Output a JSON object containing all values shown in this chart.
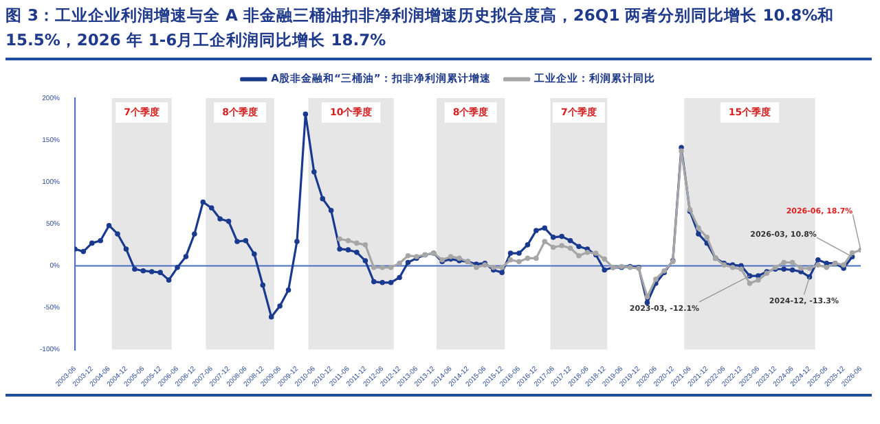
{
  "chart_data": {
    "type": "line",
    "title": "图 3：工业企业利润增速与全 A 非金融三桶油扣非净利润增速历史拟合度高，26Q1 两者分别同比增长 10.8%和 15.5%，2026 年 1-6月工企利润同比增长 18.7%",
    "x": [
      "2003-06",
      "2003-09",
      "2003-12",
      "2004-03",
      "2004-06",
      "2004-09",
      "2004-12",
      "2005-03",
      "2005-06",
      "2005-09",
      "2005-12",
      "2006-03",
      "2006-06",
      "2006-09",
      "2006-12",
      "2007-03",
      "2007-06",
      "2007-09",
      "2007-12",
      "2008-03",
      "2008-06",
      "2008-09",
      "2008-12",
      "2009-03",
      "2009-06",
      "2009-09",
      "2009-12",
      "2010-03",
      "2010-06",
      "2010-09",
      "2010-12",
      "2011-03",
      "2011-06",
      "2011-09",
      "2011-12",
      "2012-03",
      "2012-06",
      "2012-09",
      "2012-12",
      "2013-03",
      "2013-06",
      "2013-09",
      "2013-12",
      "2014-03",
      "2014-06",
      "2014-09",
      "2014-12",
      "2015-03",
      "2015-06",
      "2015-09",
      "2015-12",
      "2016-03",
      "2016-06",
      "2016-09",
      "2016-12",
      "2017-03",
      "2017-06",
      "2017-09",
      "2017-12",
      "2018-03",
      "2018-06",
      "2018-09",
      "2018-12",
      "2019-03",
      "2019-06",
      "2019-09",
      "2019-12",
      "2020-03",
      "2020-06",
      "2020-09",
      "2020-12",
      "2021-03",
      "2021-06",
      "2021-09",
      "2021-12",
      "2022-03",
      "2022-06",
      "2022-09",
      "2022-12",
      "2023-03",
      "2023-06",
      "2023-09",
      "2023-12",
      "2024-03",
      "2024-06",
      "2024-09",
      "2024-12",
      "2025-03",
      "2025-06",
      "2025-09",
      "2025-12",
      "2026-03",
      "2026-06"
    ],
    "series": [
      {
        "name": "A股非金融和“三桶油”：扣非净利润累计增速",
        "color": "#1a3a8f",
        "values": [
          20,
          17,
          27,
          30,
          48,
          38,
          20,
          -4,
          -6,
          -7,
          -8,
          -17,
          -2,
          11,
          38,
          76,
          69,
          56,
          53,
          29,
          30,
          14,
          -23,
          -61,
          -48,
          -29,
          29,
          181,
          112,
          80,
          66,
          20,
          19,
          16,
          6,
          -19,
          -20,
          -20,
          -14,
          4,
          9,
          13,
          15,
          5,
          8,
          6,
          5,
          2,
          3,
          -5,
          -8,
          15,
          15,
          25,
          42,
          45,
          34,
          35,
          30,
          23,
          20,
          13,
          -5,
          -2,
          -2,
          -1,
          -2,
          -44,
          -21,
          -8,
          6,
          141,
          65,
          38,
          27,
          9,
          3,
          1,
          0,
          -12.1,
          -12,
          -7,
          -4,
          -4,
          -5,
          -7,
          -13.3,
          7,
          3,
          3,
          -3,
          10.8,
          null
        ]
      },
      {
        "name": "工业企业：利润累计同比",
        "color": "#a6a6a6",
        "values": [
          null,
          null,
          null,
          null,
          null,
          null,
          null,
          null,
          null,
          null,
          null,
          null,
          null,
          null,
          null,
          null,
          null,
          null,
          null,
          null,
          null,
          null,
          null,
          null,
          null,
          null,
          null,
          null,
          null,
          null,
          null,
          32,
          30,
          27,
          25,
          -2,
          -2,
          -2,
          3,
          12,
          11,
          13,
          15,
          7,
          11,
          9,
          5,
          -2,
          1,
          -2,
          -2,
          7,
          5,
          9,
          9,
          29,
          22,
          24,
          21,
          12,
          16,
          15,
          8,
          -2,
          -1,
          -2,
          -3,
          -37,
          -16,
          -6,
          5,
          137,
          67,
          45,
          34,
          9,
          1,
          -2,
          -4,
          -21,
          -17,
          -9,
          -2,
          4,
          4,
          -3,
          -3,
          1,
          -2,
          3,
          1,
          15.5,
          18.7
        ]
      }
    ],
    "xlim": [
      "2003-06",
      "2026-06"
    ],
    "xticks": [
      "2003-06",
      "2003-12",
      "2004-06",
      "2004-12",
      "2005-06",
      "2005-12",
      "2006-06",
      "2006-12",
      "2007-06",
      "2007-12",
      "2008-06",
      "2008-12",
      "2009-06",
      "2009-12",
      "2010-06",
      "2010-12",
      "2011-06",
      "2011-12",
      "2012-06",
      "2012-12",
      "2013-06",
      "2013-12",
      "2014-06",
      "2014-12",
      "2015-06",
      "2015-12",
      "2016-06",
      "2016-12",
      "2017-06",
      "2017-12",
      "2018-06",
      "2018-12",
      "2019-06",
      "2019-12",
      "2020-06",
      "2020-12",
      "2021-06",
      "2021-12",
      "2022-06",
      "2022-12",
      "2023-06",
      "2023-12",
      "2024-06",
      "2024-12",
      "2025-06",
      "2025-12",
      "2026-06"
    ],
    "ylim": [
      -100,
      200
    ],
    "yticks": [
      {
        "value": -100,
        "label": "-100%"
      },
      {
        "value": -50,
        "label": "-50%"
      },
      {
        "value": 0,
        "label": "0%"
      },
      {
        "value": 50,
        "label": "50%"
      },
      {
        "value": 100,
        "label": "100%"
      },
      {
        "value": 150,
        "label": "150%"
      },
      {
        "value": 200,
        "label": "200%"
      }
    ],
    "bands": [
      {
        "axis": "x",
        "from": "2004-07",
        "to": "2006-04",
        "label": "7个季度",
        "color": "#e6e6e6"
      },
      {
        "axis": "x",
        "from": "2007-04",
        "to": "2009-04",
        "label": "8个季度",
        "color": "#e6e6e6"
      },
      {
        "axis": "x",
        "from": "2010-04",
        "to": "2012-10",
        "label": "10个季度",
        "color": "#e6e6e6"
      },
      {
        "axis": "x",
        "from": "2014-01",
        "to": "2016-01",
        "label": "8个季度",
        "color": "#e6e6e6"
      },
      {
        "axis": "x",
        "from": "2017-05",
        "to": "2019-01",
        "label": "7个季度",
        "color": "#e6e6e6"
      },
      {
        "axis": "x",
        "from": "2021-04",
        "to": "2025-02",
        "label": "15个季度",
        "color": "#e6e6e6"
      }
    ],
    "ref_lines": [
      {
        "axis": "y",
        "value": 0,
        "color": "#4a6fc0"
      }
    ],
    "annotations": [
      {
        "text": "2023-03, -12.1%",
        "x": "2023-03",
        "y": -12.1
      },
      {
        "text": "2024-12, -13.3%",
        "x": "2024-12",
        "y": -13.3
      },
      {
        "text": "2026-03, 10.8%",
        "x": "2026-03",
        "y": 10.8
      },
      {
        "text": "2026-06, 18.7%",
        "x": "2026-06",
        "y": 18.7
      }
    ],
    "legend": "top",
    "marker": "circle",
    "grid": false
  }
}
